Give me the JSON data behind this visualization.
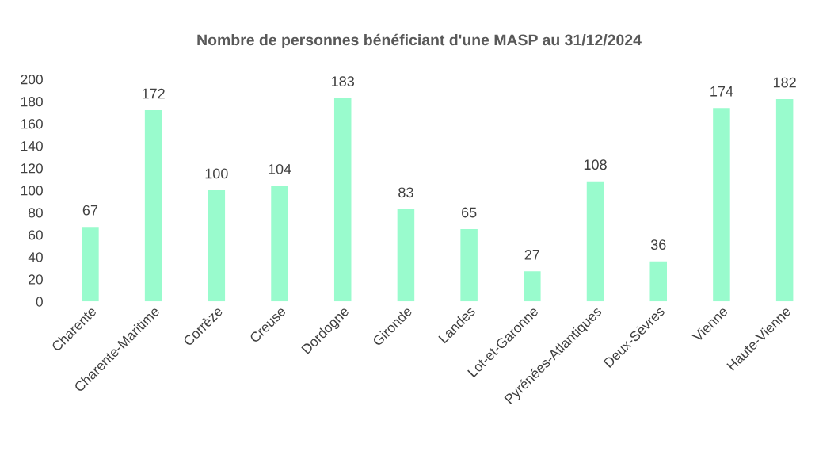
{
  "chart_data": {
    "type": "bar",
    "title": "Nombre de personnes bénéficiant d'une MASP au 31/12/2024",
    "categories": [
      "Charente",
      "Charente-Maritime",
      "Corrèze",
      "Creuse",
      "Dordogne",
      "Gironde",
      "Landes",
      "Lot-et-Garonne",
      "Pyrénées-Atlantiques",
      "Deux-Sèvres",
      "Vienne",
      "Haute-Vienne"
    ],
    "values": [
      67,
      172,
      100,
      104,
      183,
      83,
      65,
      27,
      108,
      36,
      174,
      182
    ],
    "color": "#99fbcd",
    "ylim": [
      0,
      200
    ],
    "yticks": [
      0,
      20,
      40,
      60,
      80,
      100,
      120,
      140,
      160,
      180,
      200
    ],
    "data_labels": true,
    "grid": false,
    "legend": false
  }
}
